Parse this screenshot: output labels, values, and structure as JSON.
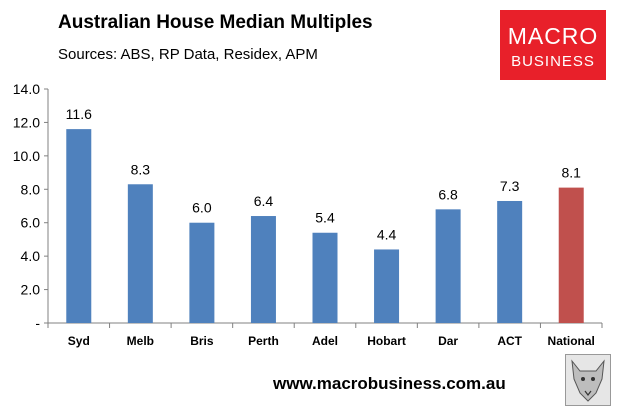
{
  "chart_data": {
    "type": "bar",
    "title": "Australian House Median Multiples",
    "subtitle": "Sources: ABS, RP Data, Residex, APM",
    "categories": [
      "Syd",
      "Melb",
      "Bris",
      "Perth",
      "Adel",
      "Hobart",
      "Dar",
      "ACT",
      "National"
    ],
    "values": [
      11.6,
      8.3,
      6.0,
      6.4,
      5.4,
      4.4,
      6.8,
      7.3,
      8.1
    ],
    "data_labels": [
      "11.6",
      "8.3",
      "6.0",
      "6.4",
      "5.4",
      "4.4",
      "6.8",
      "7.3",
      "8.1"
    ],
    "y_ticks": [
      0,
      2,
      4,
      6,
      8,
      10,
      12,
      14
    ],
    "y_tick_labels": [
      "-",
      "2.0",
      "4.0",
      "6.0",
      "8.0",
      "10.0",
      "12.0",
      "14.0"
    ],
    "ylim": [
      0,
      14
    ],
    "xlabel": "",
    "ylabel": "",
    "grid": false,
    "legend": false,
    "colors": {
      "default": "#4f81bd",
      "highlight": "#c0504d",
      "highlight_index": 8
    }
  },
  "logo": {
    "line1": "MACRO",
    "line2": "BUSINESS",
    "color": "#e8202a"
  },
  "footer": {
    "url": "www.macrobusiness.com.au",
    "mascot_icon": "wolf-icon"
  }
}
